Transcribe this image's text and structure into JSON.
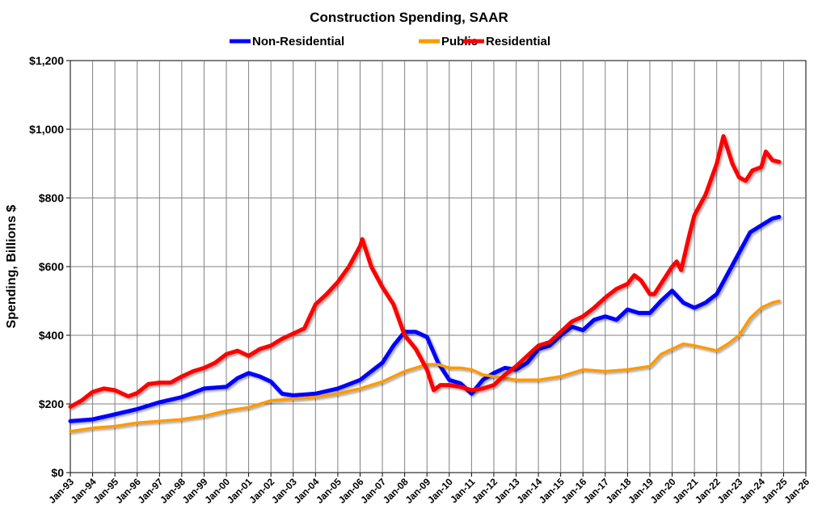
{
  "chart_data": {
    "type": "line",
    "title": "Construction Spending, SAAR",
    "xlabel": "",
    "ylabel": "Spending, Billions $",
    "ylim": [
      0,
      1200
    ],
    "yticks": [
      "$0",
      "$200",
      "$400",
      "$600",
      "$800",
      "$1,000",
      "$1,200"
    ],
    "ytick_values": [
      0,
      200,
      400,
      600,
      800,
      1000,
      1200
    ],
    "xlim": [
      1993,
      2026
    ],
    "xticks": [
      "Jan-93",
      "Jan-94",
      "Jan-95",
      "Jan-96",
      "Jan-97",
      "Jan-98",
      "Jan-99",
      "Jan-00",
      "Jan-01",
      "Jan-02",
      "Jan-03",
      "Jan-04",
      "Jan-05",
      "Jan-06",
      "Jan-07",
      "Jan-08",
      "Jan-09",
      "Jan-10",
      "Jan-11",
      "Jan-12",
      "Jan-13",
      "Jan-14",
      "Jan-15",
      "Jan-16",
      "Jan-17",
      "Jan-18",
      "Jan-19",
      "Jan-20",
      "Jan-21",
      "Jan-22",
      "Jan-23",
      "Jan-24",
      "Jan-25",
      "Jan-26"
    ],
    "grid": true,
    "legend_placement": "top",
    "series": [
      {
        "name": "Non-Residential",
        "color": "#0000FF",
        "x": [
          1993,
          1994,
          1995,
          1996,
          1997,
          1998,
          1999,
          2000,
          2000.5,
          2001,
          2001.5,
          2002,
          2002.5,
          2003,
          2004,
          2005,
          2006,
          2006.5,
          2007,
          2007.5,
          2008,
          2008.5,
          2009,
          2009.5,
          2010,
          2010.5,
          2011,
          2011.5,
          2012,
          2012.5,
          2013,
          2013.5,
          2014,
          2014.5,
          2015,
          2015.5,
          2016,
          2016.5,
          2017,
          2017.5,
          2018,
          2018.5,
          2019,
          2019.5,
          2020,
          2020.5,
          2021,
          2021.5,
          2022,
          2022.5,
          2023,
          2023.5,
          2024,
          2024.5,
          2024.8
        ],
        "y": [
          150,
          155,
          170,
          185,
          205,
          220,
          245,
          250,
          275,
          290,
          280,
          265,
          230,
          225,
          230,
          245,
          270,
          295,
          320,
          370,
          410,
          410,
          395,
          320,
          270,
          260,
          230,
          270,
          290,
          305,
          300,
          320,
          360,
          370,
          400,
          425,
          415,
          445,
          455,
          445,
          475,
          465,
          465,
          500,
          530,
          495,
          480,
          495,
          520,
          580,
          640,
          700,
          720,
          740,
          745
        ]
      },
      {
        "name": "Public",
        "color": "#FF9900",
        "x": [
          1993,
          1994,
          1995,
          1996,
          1997,
          1998,
          1999,
          2000,
          2001,
          2002,
          2003,
          2004,
          2005,
          2006,
          2007,
          2008,
          2009,
          2009.5,
          2010,
          2010.5,
          2011,
          2011.5,
          2012,
          2012.5,
          2013,
          2014,
          2015,
          2016,
          2017,
          2018,
          2019,
          2019.5,
          2020,
          2020.5,
          2021,
          2022,
          2022.5,
          2023,
          2023.5,
          2024,
          2024.5,
          2024.8
        ],
        "y": [
          120,
          130,
          135,
          145,
          150,
          155,
          165,
          180,
          190,
          210,
          215,
          220,
          230,
          245,
          265,
          295,
          315,
          315,
          305,
          305,
          300,
          285,
          280,
          275,
          270,
          270,
          280,
          300,
          295,
          300,
          310,
          345,
          360,
          375,
          370,
          355,
          375,
          400,
          450,
          480,
          495,
          500
        ]
      },
      {
        "name": "Residential",
        "color": "#FF0000",
        "x": [
          1993,
          1993.5,
          1994,
          1994.5,
          1995,
          1995.6,
          1996,
          1996.5,
          1997,
          1997.5,
          1998,
          1998.5,
          1999,
          1999.5,
          2000,
          2000.5,
          2001,
          2001.5,
          2002,
          2002.5,
          2003,
          2003.5,
          2004,
          2004.5,
          2005,
          2005.5,
          2006,
          2006.1,
          2006.5,
          2007,
          2007.5,
          2008,
          2008.5,
          2009,
          2009.3,
          2009.6,
          2010,
          2010.5,
          2011,
          2011.5,
          2012,
          2012.5,
          2013,
          2013.5,
          2014,
          2014.5,
          2015,
          2015.5,
          2016,
          2016.5,
          2017,
          2017.5,
          2018,
          2018.3,
          2018.6,
          2019,
          2019.2,
          2019.6,
          2020,
          2020.2,
          2020.4,
          2020.8,
          2021,
          2021.5,
          2022,
          2022.3,
          2022.7,
          2023,
          2023.3,
          2023.6,
          2024,
          2024.2,
          2024.5,
          2024.8
        ],
        "y": [
          192,
          210,
          235,
          245,
          240,
          222,
          232,
          258,
          262,
          262,
          280,
          295,
          305,
          320,
          345,
          355,
          340,
          360,
          370,
          390,
          405,
          420,
          490,
          520,
          555,
          600,
          660,
          680,
          600,
          540,
          490,
          400,
          360,
          300,
          240,
          255,
          255,
          250,
          240,
          245,
          255,
          285,
          310,
          340,
          370,
          380,
          410,
          440,
          455,
          480,
          510,
          535,
          550,
          575,
          560,
          520,
          520,
          560,
          600,
          615,
          590,
          700,
          750,
          810,
          900,
          980,
          900,
          860,
          850,
          880,
          890,
          935,
          910,
          905
        ]
      }
    ]
  }
}
